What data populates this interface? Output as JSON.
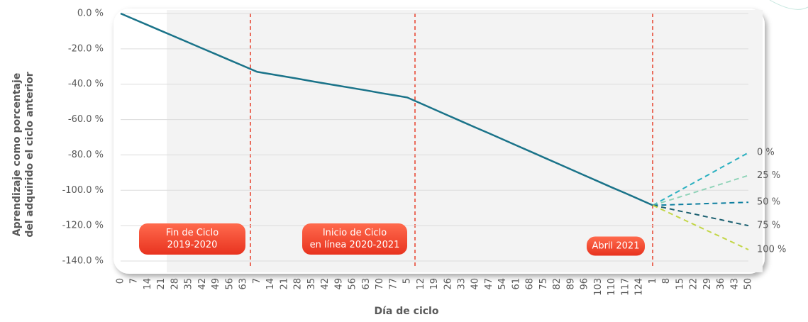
{
  "chart_data": {
    "type": "line",
    "y_title": [
      "Aprendizaje como porcentaje",
      "del adquirido el ciclo anterior"
    ],
    "x_title": "Día de ciclo",
    "categories": [
      "0",
      "7",
      "14",
      "21",
      "28",
      "35",
      "42",
      "49",
      "56",
      "63",
      "7",
      "14",
      "21",
      "28",
      "35",
      "42",
      "49",
      "56",
      "63",
      "70",
      "77",
      "5",
      "12",
      "19",
      "26",
      "33",
      "40",
      "47",
      "54",
      "61",
      "68",
      "75",
      "82",
      "89",
      "96",
      "103",
      "110",
      "117",
      "124",
      "1",
      "8",
      "15",
      "22",
      "29",
      "36",
      "43",
      "50"
    ],
    "ylim": [
      -140,
      0
    ],
    "yticks": [
      {
        "value": 0,
        "label": "0.0 %"
      },
      {
        "value": -20,
        "label": "-20.0 %"
      },
      {
        "value": -40,
        "label": "-40.0 %"
      },
      {
        "value": -60,
        "label": "-60.0 %"
      },
      {
        "value": -80,
        "label": "-80.0 %"
      },
      {
        "value": -100,
        "label": "-100.0 %"
      },
      {
        "value": -120,
        "label": "-120.0 %"
      },
      {
        "value": -140,
        "label": "-140.0 %"
      }
    ],
    "grid": true,
    "series": [
      {
        "color": "#1a7389",
        "dashed": false,
        "values": [
          0,
          -3.3,
          -6.6,
          -9.9,
          -13.2,
          -16.5,
          -19.8,
          -23.1,
          -26.4,
          -29.7,
          -33,
          -34.3,
          -35.6,
          -36.9,
          -38.3,
          -39.6,
          -40.9,
          -42.2,
          -43.5,
          -44.9,
          -46.2,
          -47.5,
          -50.9,
          -54.3,
          -57.7,
          -61.1,
          -64.5,
          -67.8,
          -71.2,
          -74.6,
          -78,
          -81.4,
          -84.8,
          -88.2,
          -91.6,
          -95,
          -98.4,
          -101.7,
          -105.1,
          -108.5,
          null,
          null,
          null,
          null,
          null,
          null,
          null
        ]
      },
      {
        "name": "0 %",
        "color": "#2ab0c0",
        "dashed": true,
        "values": [
          null,
          null,
          null,
          null,
          null,
          null,
          null,
          null,
          null,
          null,
          null,
          null,
          null,
          null,
          null,
          null,
          null,
          null,
          null,
          null,
          null,
          null,
          null,
          null,
          null,
          null,
          null,
          null,
          null,
          null,
          null,
          null,
          null,
          null,
          null,
          null,
          null,
          null,
          null,
          -108.5,
          -104.2,
          -100,
          -95.7,
          -91.5,
          -87.2,
          -83,
          -78.7
        ]
      },
      {
        "name": "25 %",
        "color": "#8fd3b8",
        "dashed": true,
        "values": [
          null,
          null,
          null,
          null,
          null,
          null,
          null,
          null,
          null,
          null,
          null,
          null,
          null,
          null,
          null,
          null,
          null,
          null,
          null,
          null,
          null,
          null,
          null,
          null,
          null,
          null,
          null,
          null,
          null,
          null,
          null,
          null,
          null,
          null,
          null,
          null,
          null,
          null,
          null,
          -108.5,
          -106.1,
          -103.7,
          -101.3,
          -98.9,
          -96.5,
          -94,
          -91.6
        ]
      },
      {
        "name": "50 %",
        "color": "#0e7fa0",
        "dashed": true,
        "values": [
          null,
          null,
          null,
          null,
          null,
          null,
          null,
          null,
          null,
          null,
          null,
          null,
          null,
          null,
          null,
          null,
          null,
          null,
          null,
          null,
          null,
          null,
          null,
          null,
          null,
          null,
          null,
          null,
          null,
          null,
          null,
          null,
          null,
          null,
          null,
          null,
          null,
          null,
          null,
          -108.5,
          -108.3,
          -108,
          -107.8,
          -107.5,
          -107.3,
          -107,
          -106.8
        ]
      },
      {
        "name": "75 %",
        "color": "#1a5f70",
        "dashed": true,
        "values": [
          null,
          null,
          null,
          null,
          null,
          null,
          null,
          null,
          null,
          null,
          null,
          null,
          null,
          null,
          null,
          null,
          null,
          null,
          null,
          null,
          null,
          null,
          null,
          null,
          null,
          null,
          null,
          null,
          null,
          null,
          null,
          null,
          null,
          null,
          null,
          null,
          null,
          null,
          null,
          -108.5,
          -110.1,
          -111.8,
          -113.4,
          -115.1,
          -116.7,
          -118.4,
          -120
        ]
      },
      {
        "name": "100 %",
        "color": "#c3d646",
        "dashed": true,
        "values": [
          null,
          null,
          null,
          null,
          null,
          null,
          null,
          null,
          null,
          null,
          null,
          null,
          null,
          null,
          null,
          null,
          null,
          null,
          null,
          null,
          null,
          null,
          null,
          null,
          null,
          null,
          null,
          null,
          null,
          null,
          null,
          null,
          null,
          null,
          null,
          null,
          null,
          null,
          null,
          -108.5,
          -112.1,
          -115.7,
          -119.3,
          -122.9,
          -126.4,
          -130,
          -133.6
        ]
      }
    ],
    "annotations": [
      {
        "text": [
          "Fin de Ciclo",
          "2019-2020"
        ]
      },
      {
        "text": [
          "Inicio de Ciclo",
          "en línea 2020-2021"
        ]
      },
      {
        "text": [
          "Abril 2021"
        ]
      }
    ]
  }
}
